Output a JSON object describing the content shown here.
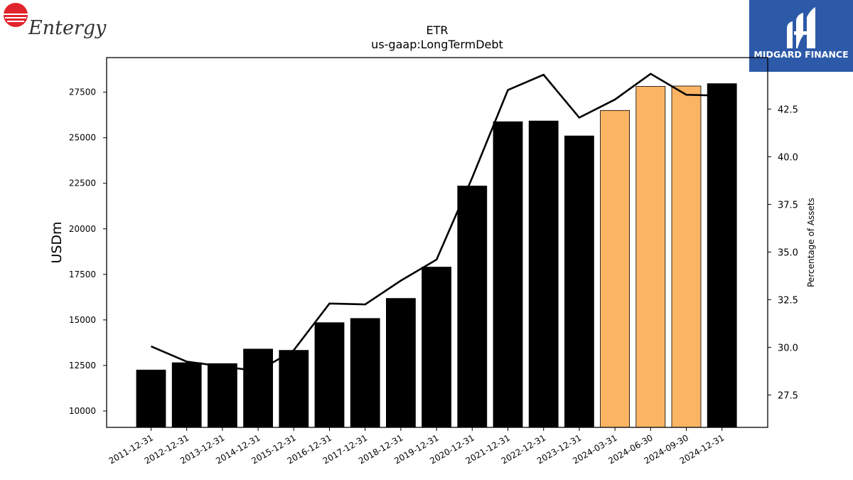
{
  "branding": {
    "company_logo_text": "Entergy",
    "company_logo_color": "#e1242b",
    "watermark_text": "MIDGARD FINANCE",
    "watermark_bg": "#2d5aa8"
  },
  "colors": {
    "actual_bar": "#000000",
    "quarterly_bar": "#fbb464",
    "line": "#000000"
  },
  "chart_data": {
    "type": "bar",
    "title": "ETR",
    "subtitle": "us-gaap:LongTermDebt",
    "ylabel": "USDm",
    "ylabel_right": "Percentage of Assets",
    "categories": [
      "2011-12-31",
      "2012-12-31",
      "2013-12-31",
      "2014-12-31",
      "2015-12-31",
      "2016-12-31",
      "2017-12-31",
      "2018-12-31",
      "2019-12-31",
      "2020-12-31",
      "2021-12-31",
      "2022-12-31",
      "2023-12-31",
      "2024-03-31",
      "2024-06-30",
      "2024-09-30",
      "2024-12-31"
    ],
    "values": [
      12250,
      12650,
      12600,
      13400,
      13330,
      14850,
      15080,
      16180,
      17900,
      22350,
      25880,
      25920,
      25100,
      26500,
      27820,
      27840,
      27970
    ],
    "bar_kinds": [
      "annual",
      "annual",
      "annual",
      "annual",
      "annual",
      "annual",
      "annual",
      "annual",
      "annual",
      "annual",
      "annual",
      "annual",
      "annual",
      "quarterly",
      "quarterly",
      "quarterly",
      "annual"
    ],
    "ylim": [
      9100,
      29400
    ],
    "yticks": [
      10000,
      12500,
      15000,
      17500,
      20000,
      22500,
      25000,
      27500
    ],
    "line_series": {
      "values": [
        30.05,
        29.25,
        29.0,
        28.75,
        29.85,
        32.3,
        32.25,
        33.5,
        34.6,
        38.9,
        43.5,
        44.3,
        42.05,
        43.0,
        44.35,
        43.25,
        43.2
      ],
      "ylim": [
        25.8,
        45.2
      ],
      "yticks": [
        27.5,
        30.0,
        32.5,
        35.0,
        37.5,
        40.0,
        42.5
      ]
    },
    "grid": false
  }
}
